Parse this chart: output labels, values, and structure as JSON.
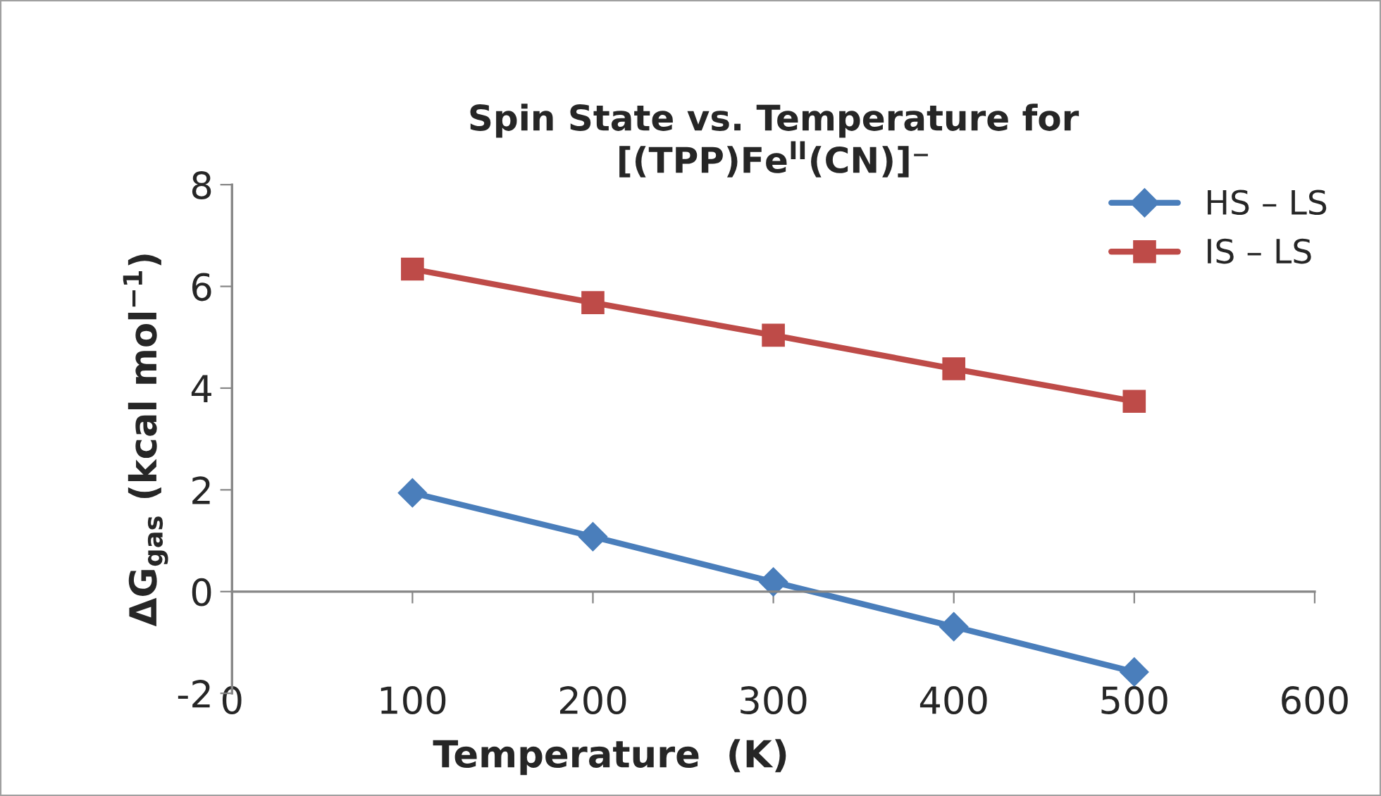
{
  "chart_data": {
    "type": "line",
    "title": "Spin State vs. Temperature for\n[(TPP)Fe$^{II}$(CN)]⁻",
    "xlabel": "Temperature  (K)",
    "ylabel": "ΔG$_{gas}$ (kcal mol$^{−1}$)",
    "x": [
      100,
      200,
      300,
      400,
      500
    ],
    "series": [
      {
        "name": "HS – LS",
        "color": "#4a7ebb",
        "marker": "diamond",
        "values": [
          1.94,
          1.08,
          0.19,
          -0.69,
          -1.58
        ]
      },
      {
        "name": "IS – LS",
        "color": "#be4b48",
        "marker": "square",
        "values": [
          6.34,
          5.68,
          5.04,
          4.38,
          3.74
        ]
      }
    ],
    "xlim": [
      0,
      600
    ],
    "xticks": [
      0,
      100,
      200,
      300,
      400,
      500,
      600
    ],
    "ylim": [
      -2,
      8
    ],
    "yticks": [
      -2,
      0,
      2,
      4,
      6,
      8
    ],
    "grid": false,
    "legend": "top right",
    "line_style": "solid"
  }
}
